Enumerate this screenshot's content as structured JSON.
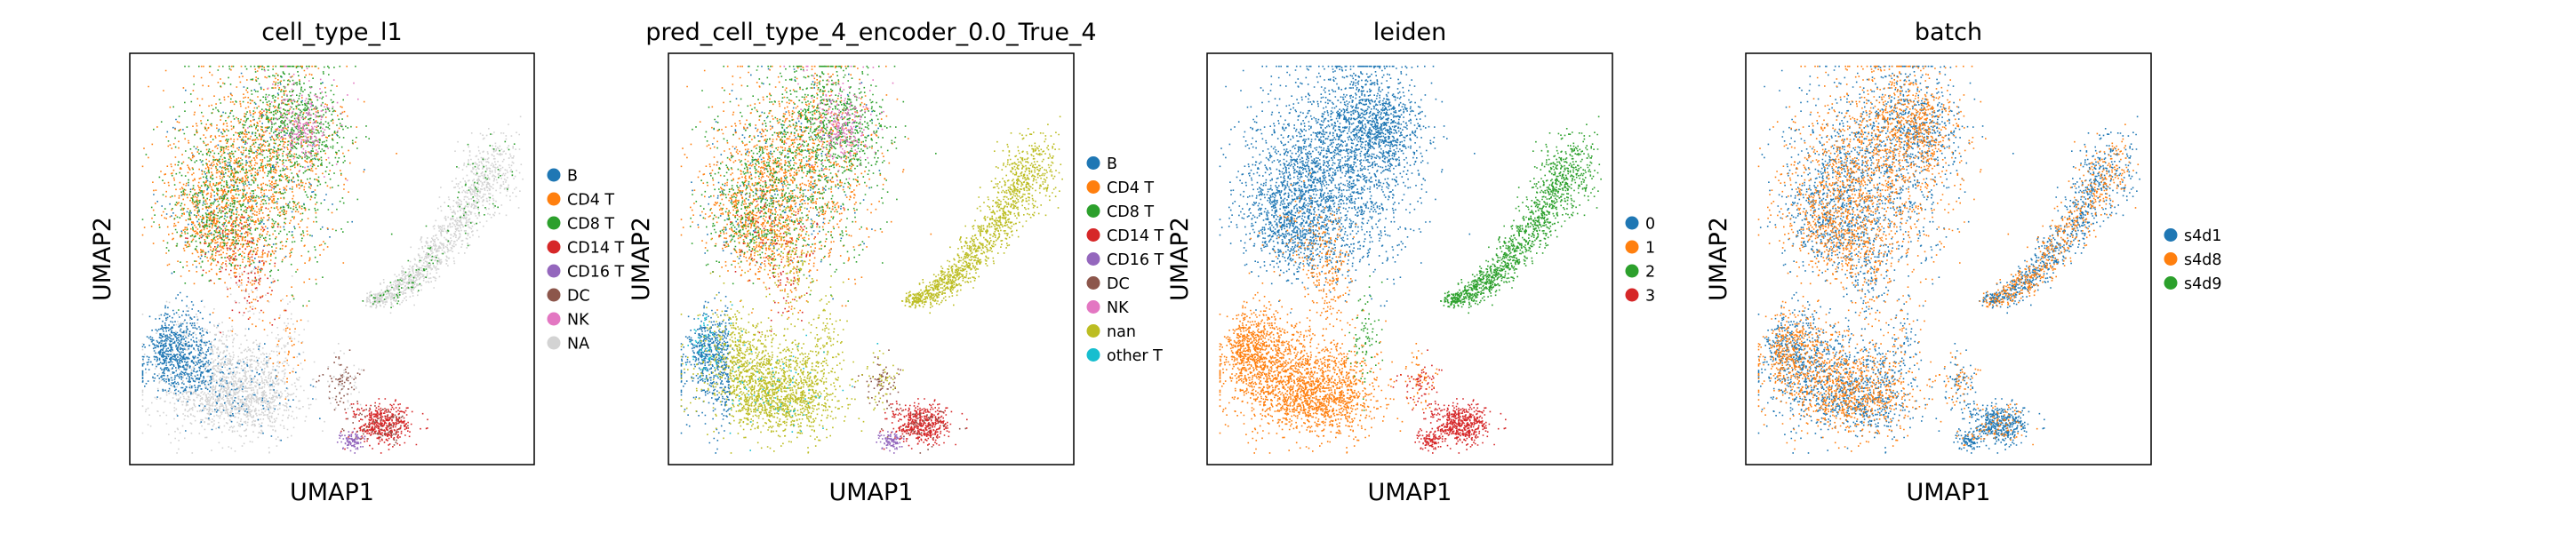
{
  "chart_data": [
    {
      "type": "scatter",
      "title": "cell_type_l1",
      "xlabel": "UMAP1",
      "ylabel": "UMAP2",
      "grid": false,
      "legend": "right",
      "series": [
        {
          "name": "B",
          "color": "#1f77b4"
        },
        {
          "name": "CD4 T",
          "color": "#ff7f0e"
        },
        {
          "name": "CD8 T",
          "color": "#2ca02c"
        },
        {
          "name": "CD14 T",
          "color": "#d62728"
        },
        {
          "name": "CD16 T",
          "color": "#9467bd"
        },
        {
          "name": "DC",
          "color": "#8c564b"
        },
        {
          "name": "NK",
          "color": "#e377c2"
        },
        {
          "name": "NA",
          "color": "#d3d3d3"
        }
      ]
    },
    {
      "type": "scatter",
      "title": "pred_cell_type_4_encoder_0.0_True_4",
      "xlabel": "UMAP1",
      "ylabel": "UMAP2",
      "grid": false,
      "legend": "right",
      "series": [
        {
          "name": "B",
          "color": "#1f77b4"
        },
        {
          "name": "CD4 T",
          "color": "#ff7f0e"
        },
        {
          "name": "CD8 T",
          "color": "#2ca02c"
        },
        {
          "name": "CD14 T",
          "color": "#d62728"
        },
        {
          "name": "CD16 T",
          "color": "#9467bd"
        },
        {
          "name": "DC",
          "color": "#8c564b"
        },
        {
          "name": "NK",
          "color": "#e377c2"
        },
        {
          "name": "nan",
          "color": "#bcbd22"
        },
        {
          "name": "other T",
          "color": "#17becf"
        }
      ]
    },
    {
      "type": "scatter",
      "title": "leiden",
      "xlabel": "UMAP1",
      "ylabel": "UMAP2",
      "grid": false,
      "legend": "right",
      "series": [
        {
          "name": "0",
          "color": "#1f77b4"
        },
        {
          "name": "1",
          "color": "#ff7f0e"
        },
        {
          "name": "2",
          "color": "#2ca02c"
        },
        {
          "name": "3",
          "color": "#d62728"
        }
      ]
    },
    {
      "type": "scatter",
      "title": "batch",
      "xlabel": "UMAP1",
      "ylabel": "UMAP2",
      "grid": false,
      "legend": "right",
      "series": [
        {
          "name": "s4d1",
          "color": "#1f77b4"
        },
        {
          "name": "s4d8",
          "color": "#ff7f0e"
        },
        {
          "name": "s4d9",
          "color": "#2ca02c"
        }
      ]
    }
  ]
}
